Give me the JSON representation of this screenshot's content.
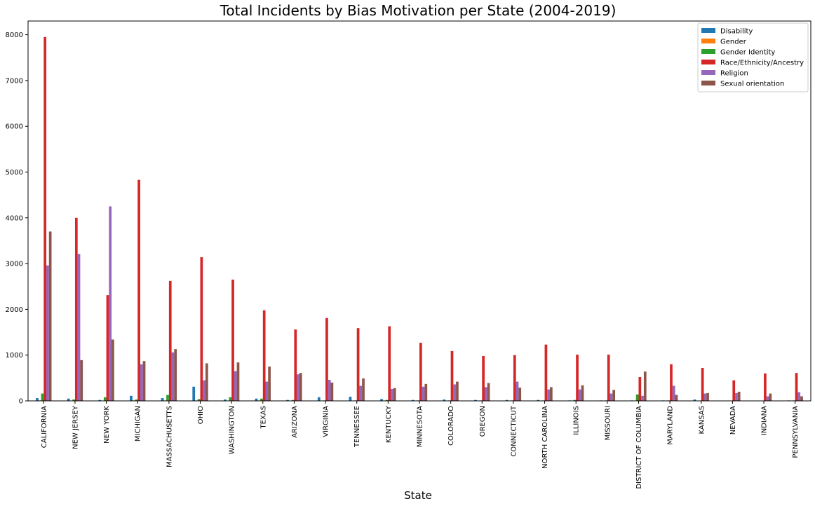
{
  "chart_data": {
    "type": "bar",
    "title": "Total Incidents by Bias Motivation per State (2004-2019)",
    "xlabel": "State",
    "ylabel": "",
    "ylim": [
      0,
      8300
    ],
    "yticks": [
      0,
      1000,
      2000,
      3000,
      4000,
      5000,
      6000,
      7000,
      8000
    ],
    "legend_position": "top-right",
    "grid": false,
    "categories": [
      "CALIFORNIA",
      "NEW JERSEY",
      "NEW YORK",
      "MICHIGAN",
      "MASSACHUSETTS",
      "OHIO",
      "WASHINGTON",
      "TEXAS",
      "ARIZONA",
      "VIRGINIA",
      "TENNESSEE",
      "KENTUCKY",
      "MINNESOTA",
      "COLORADO",
      "OREGON",
      "CONNECTICUT",
      "NORTH CAROLINA",
      "ILLINOIS",
      "MISSOURI",
      "DISTRICT OF COLUMBIA",
      "MARYLAND",
      "KANSAS",
      "NEVADA",
      "INDIANA",
      "PENNSYLVANIA"
    ],
    "series": [
      {
        "name": "Disability",
        "color": "#1f77b4",
        "values": [
          60,
          50,
          20,
          110,
          60,
          310,
          30,
          50,
          20,
          80,
          90,
          40,
          20,
          30,
          20,
          20,
          20,
          10,
          10,
          10,
          10,
          30,
          5,
          5,
          10
        ]
      },
      {
        "name": "Gender",
        "color": "#ff7f0e",
        "values": [
          10,
          5,
          5,
          10,
          10,
          10,
          5,
          10,
          5,
          5,
          5,
          5,
          5,
          5,
          5,
          5,
          5,
          5,
          5,
          5,
          5,
          5,
          5,
          5,
          5
        ]
      },
      {
        "name": "Gender Identity",
        "color": "#2ca02c",
        "values": [
          160,
          30,
          80,
          30,
          130,
          40,
          80,
          50,
          20,
          10,
          10,
          20,
          10,
          10,
          10,
          10,
          10,
          20,
          10,
          140,
          10,
          5,
          5,
          5,
          10
        ]
      },
      {
        "name": "Race/Ethnicity/Ancestry",
        "color": "#d62728",
        "values": [
          7950,
          4000,
          2310,
          4830,
          2620,
          3140,
          2650,
          1980,
          1560,
          1810,
          1590,
          1630,
          1270,
          1090,
          980,
          1000,
          1230,
          1010,
          1010,
          520,
          800,
          720,
          450,
          600,
          610
        ]
      },
      {
        "name": "Religion",
        "color": "#9467bd",
        "values": [
          2960,
          3210,
          4250,
          800,
          1060,
          450,
          650,
          420,
          580,
          460,
          330,
          260,
          310,
          360,
          300,
          420,
          250,
          250,
          160,
          110,
          330,
          160,
          170,
          100,
          190
        ]
      },
      {
        "name": "Sexual orientation",
        "color": "#8c564b",
        "values": [
          3700,
          890,
          1340,
          870,
          1130,
          820,
          840,
          750,
          610,
          400,
          490,
          280,
          370,
          420,
          390,
          290,
          300,
          340,
          240,
          640,
          130,
          170,
          200,
          160,
          100
        ]
      }
    ]
  }
}
